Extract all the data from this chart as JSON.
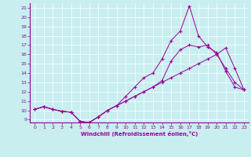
{
  "xlabel": "Windchill (Refroidissement éolien,°C)",
  "bg_color": "#c8eef0",
  "line_color": "#990099",
  "grid_color": "#ffffff",
  "xlim": [
    -0.5,
    23.5
  ],
  "ylim": [
    8.7,
    21.5
  ],
  "xticks": [
    0,
    1,
    2,
    3,
    4,
    5,
    6,
    7,
    8,
    9,
    10,
    11,
    12,
    13,
    14,
    15,
    16,
    17,
    18,
    19,
    20,
    21,
    22,
    23
  ],
  "yticks": [
    9,
    10,
    11,
    12,
    13,
    14,
    15,
    16,
    17,
    18,
    19,
    20,
    21
  ],
  "line1_x": [
    0,
    1,
    2,
    3,
    4,
    5,
    6,
    7,
    8,
    9,
    10,
    11,
    12,
    13,
    14,
    15,
    16,
    17,
    18,
    19,
    20,
    21,
    22,
    23
  ],
  "line1_y": [
    10.1,
    10.4,
    10.1,
    9.9,
    9.8,
    8.8,
    8.7,
    9.3,
    10.0,
    10.5,
    11.0,
    11.5,
    12.0,
    12.5,
    13.0,
    13.5,
    14.0,
    14.5,
    15.0,
    15.5,
    16.0,
    14.5,
    13.0,
    12.2
  ],
  "line2_x": [
    0,
    1,
    2,
    3,
    4,
    5,
    6,
    7,
    8,
    9,
    10,
    11,
    12,
    13,
    14,
    15,
    16,
    17,
    18,
    19,
    20,
    21,
    22,
    23
  ],
  "line2_y": [
    10.1,
    10.4,
    10.1,
    9.9,
    9.8,
    8.8,
    8.7,
    9.3,
    10.0,
    10.5,
    11.5,
    12.5,
    13.5,
    14.0,
    15.5,
    17.5,
    18.5,
    21.2,
    18.0,
    16.8,
    16.2,
    14.2,
    12.5,
    12.2
  ],
  "line3_x": [
    0,
    1,
    2,
    3,
    4,
    5,
    6,
    7,
    8,
    9,
    10,
    11,
    12,
    13,
    14,
    15,
    16,
    17,
    18,
    19,
    20,
    21,
    22,
    23
  ],
  "line3_y": [
    10.1,
    10.4,
    10.1,
    9.9,
    9.8,
    8.8,
    8.7,
    9.3,
    10.0,
    10.5,
    11.0,
    11.5,
    12.0,
    12.5,
    13.2,
    15.3,
    16.5,
    17.0,
    16.8,
    17.0,
    16.0,
    16.7,
    14.5,
    12.2
  ],
  "figsize": [
    3.2,
    2.0
  ],
  "dpi": 100
}
